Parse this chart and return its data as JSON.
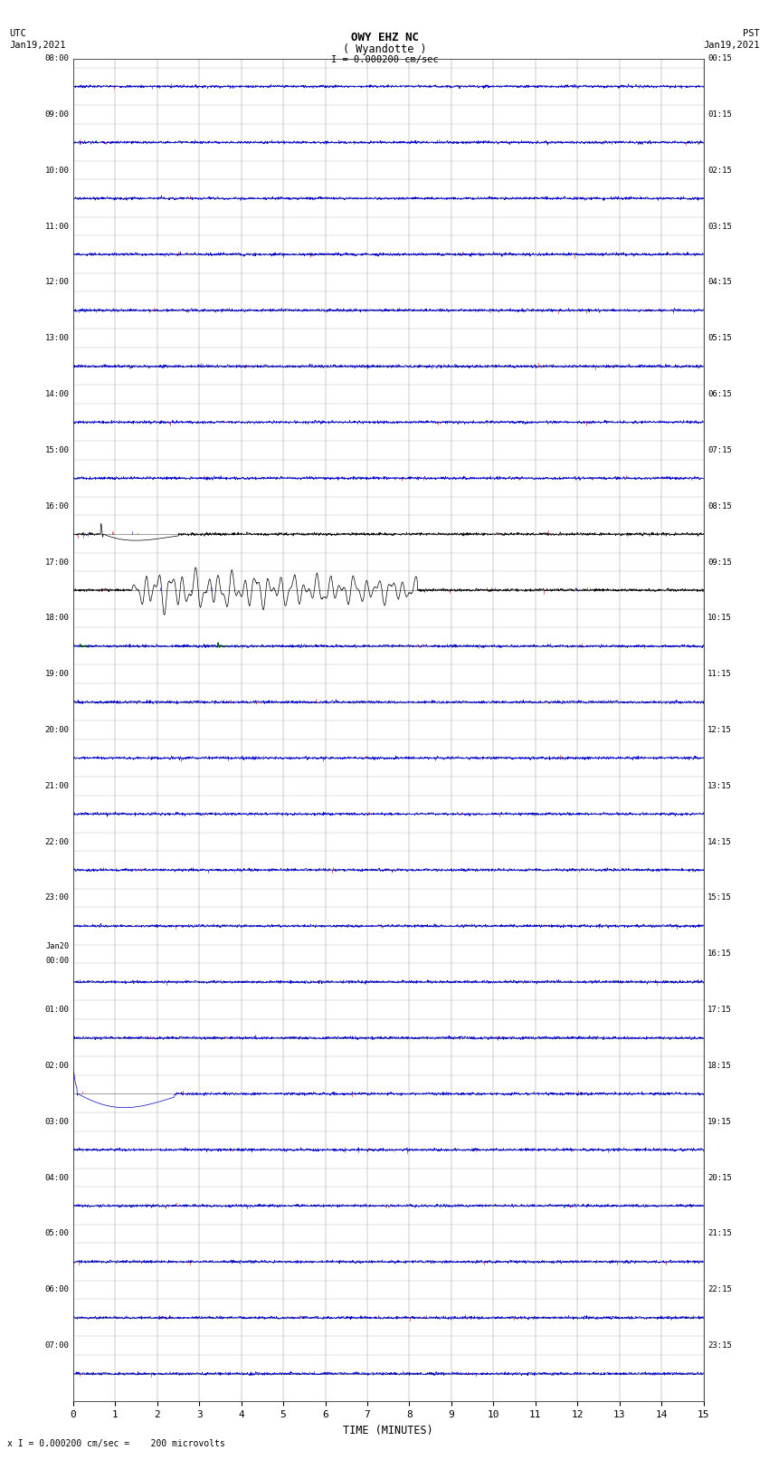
{
  "title_line1": "OWY EHZ NC",
  "title_line2": "( Wyandotte )",
  "scale_label": "I = 0.000200 cm/sec",
  "utc_label": "UTC",
  "utc_date": "Jan19,2021",
  "pst_label": "PST",
  "pst_date": "Jan19,2021",
  "footer_label": "x I = 0.000200 cm/sec =    200 microvolts",
  "xlabel": "TIME (MINUTES)",
  "xlim": [
    0,
    15
  ],
  "xticks": [
    0,
    1,
    2,
    3,
    4,
    5,
    6,
    7,
    8,
    9,
    10,
    11,
    12,
    13,
    14,
    15
  ],
  "background_color": "#ffffff",
  "num_rows": 24,
  "row_labels_left": [
    "08:00",
    "09:00",
    "10:00",
    "11:00",
    "12:00",
    "13:00",
    "14:00",
    "15:00",
    "16:00",
    "17:00",
    "18:00",
    "19:00",
    "20:00",
    "21:00",
    "22:00",
    "23:00",
    "Jan20\n00:00",
    "01:00",
    "02:00",
    "03:00",
    "04:00",
    "05:00",
    "06:00",
    "07:00"
  ],
  "row_labels_right": [
    "00:15",
    "01:15",
    "02:15",
    "03:15",
    "04:15",
    "05:15",
    "06:15",
    "07:15",
    "08:15",
    "09:15",
    "10:15",
    "11:15",
    "12:15",
    "13:15",
    "14:15",
    "15:15",
    "16:15",
    "17:15",
    "18:15",
    "19:15",
    "20:15",
    "21:15",
    "22:15",
    "23:15"
  ],
  "fig_width": 8.5,
  "fig_height": 16.13,
  "dpi": 100
}
